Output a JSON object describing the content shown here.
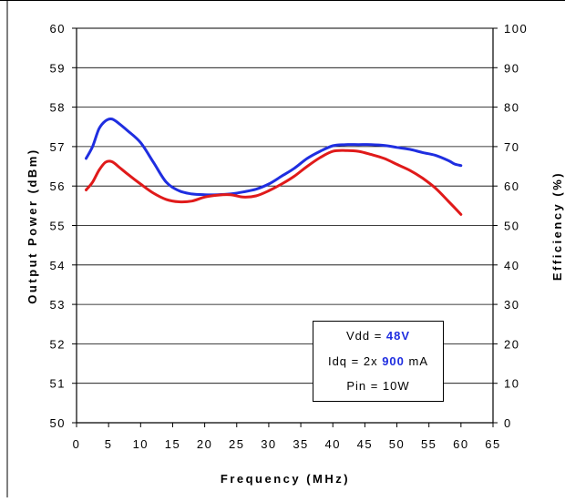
{
  "chart_data": {
    "type": "line",
    "title": "",
    "xlabel": "Frequency (MHz)",
    "ylabel": "Output Power (dBm)",
    "y2label": "Efficiency (%)",
    "xlim": [
      0,
      65
    ],
    "ylim": [
      50,
      60
    ],
    "y2lim": [
      0,
      100
    ],
    "grid": "horizontal",
    "xticks": [
      "0",
      "5",
      "10",
      "15",
      "20",
      "25",
      "30",
      "35",
      "40",
      "45",
      "50",
      "55",
      "60",
      "65"
    ],
    "yticks": [
      "50",
      "51",
      "52",
      "53",
      "54",
      "55",
      "56",
      "57",
      "58",
      "59",
      "60"
    ],
    "y2ticks": [
      "0",
      "10",
      "20",
      "30",
      "40",
      "50",
      "60",
      "70",
      "80",
      "90",
      "100"
    ],
    "series": [
      {
        "axis": "left",
        "color": "#1f2ee0",
        "x": [
          1.5,
          2.5,
          3.5,
          4.5,
          5.5,
          6.5,
          8,
          10,
          12,
          14,
          16,
          18,
          20,
          22,
          24,
          26,
          28,
          30,
          32,
          34,
          36,
          38,
          40,
          42,
          44,
          46,
          48,
          50,
          52,
          54,
          56,
          58,
          59,
          60
        ],
        "values": [
          56.7,
          57.0,
          57.45,
          57.65,
          57.7,
          57.6,
          57.4,
          57.1,
          56.6,
          56.1,
          55.88,
          55.8,
          55.78,
          55.78,
          55.8,
          55.85,
          55.92,
          56.05,
          56.25,
          56.45,
          56.7,
          56.88,
          57.02,
          57.05,
          57.05,
          57.05,
          57.03,
          56.98,
          56.93,
          56.85,
          56.78,
          56.65,
          56.56,
          56.52
        ]
      },
      {
        "axis": "left",
        "color": "#e01a1a",
        "x": [
          1.5,
          2.5,
          3.5,
          4.5,
          5.5,
          6.5,
          8,
          10,
          12,
          14,
          16,
          18,
          20,
          22,
          24,
          26,
          28,
          30,
          32,
          34,
          36,
          38,
          40,
          42,
          44,
          46,
          48,
          50,
          52,
          54,
          56,
          58,
          60
        ],
        "values": [
          55.9,
          56.1,
          56.4,
          56.6,
          56.62,
          56.5,
          56.3,
          56.05,
          55.82,
          55.66,
          55.6,
          55.62,
          55.72,
          55.77,
          55.78,
          55.72,
          55.75,
          55.88,
          56.05,
          56.25,
          56.5,
          56.72,
          56.88,
          56.9,
          56.88,
          56.8,
          56.7,
          56.55,
          56.4,
          56.2,
          55.95,
          55.62,
          55.28
        ]
      }
    ],
    "annotation": {
      "line1_prefix": "Vdd = ",
      "line1_value": "48V",
      "line2_prefix": "Idq = 2x ",
      "line2_value": "900",
      "line2_suffix": " mA",
      "line3": "Pin = 10W"
    }
  }
}
